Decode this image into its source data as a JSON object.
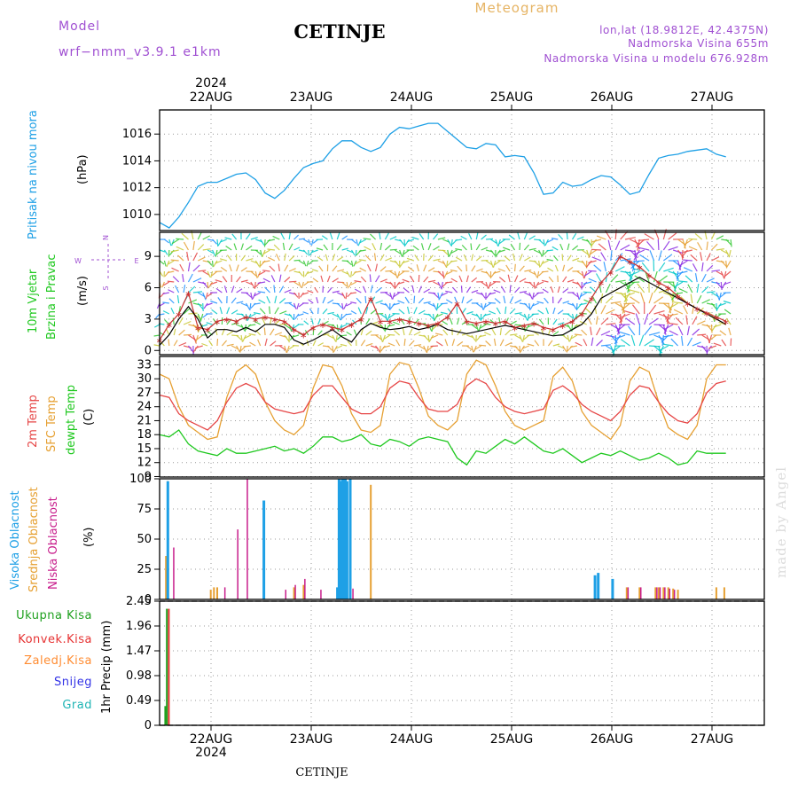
{
  "header": {
    "model_label": "Model",
    "model_name": "wrf−nmm_v3.9.1  e1km",
    "station": "CETINJE",
    "meteogram": "Meteogram",
    "lonlat": "lon,lat (18.9812E, 42.4375N)",
    "elev": "Nadmorska Visina 655m",
    "elev_model": "Nadmorska Visina u modelu 676.928m",
    "footer_station": "CETINJE",
    "watermark": "made by Angel"
  },
  "time_axis": {
    "top_year": "2024",
    "bottom_year": "2024",
    "days": [
      "22AUG",
      "23AUG",
      "24AUG",
      "25AUG",
      "26AUG",
      "27AUG"
    ]
  },
  "colors": {
    "pressure": "#1ea0e6",
    "temp2m": "#e64646",
    "sfc": "#e6a032",
    "dew": "#1ec81e",
    "wind_speed": "#000000",
    "wind_arrow": "#c83232",
    "high_cloud": "#1ea0e6",
    "mid_cloud": "#e6a032",
    "low_cloud": "#c81e8c",
    "total_precip": "#1ea01e",
    "conv_precip": "#e63232",
    "frozen": "#ff8c32",
    "snow": "#3232e6",
    "grad": "#1eb4b4"
  },
  "panels": {
    "pressure": {
      "label1": "Pritisak na nivou mora",
      "unit": "(hPa)",
      "ticks": [
        "1010",
        "1012",
        "1014",
        "1016"
      ]
    },
    "wind": {
      "label1": "10m Vjetar",
      "label2": "Brzina i Pravac",
      "unit": "(m/s)",
      "ticks": [
        "0",
        "3",
        "6",
        "9"
      ],
      "compass": {
        "n": "N",
        "s": "S",
        "e": "E",
        "w": "W"
      }
    },
    "temp": {
      "label1": "2m Temp",
      "label2": "SFC Temp",
      "label3": "dewpt Temp",
      "unit": "(C)",
      "ticks": [
        "9",
        "12",
        "15",
        "18",
        "21",
        "24",
        "27",
        "30",
        "33"
      ]
    },
    "cloud": {
      "label1": "Visoka Oblacnost",
      "label2": "Srednja Oblacnost",
      "label3": "Niska Oblacnost",
      "unit": "(%)",
      "ticks": [
        "0",
        "25",
        "50",
        "75",
        "100"
      ]
    },
    "precip": {
      "legend": [
        "Ukupna Kisa",
        "Konvek.Kisa",
        "Zaledj.Kisa",
        "Snijeg",
        "Grad"
      ],
      "unit": "1hr Precip (mm)",
      "ticks": [
        "0",
        "0.49",
        "0.98",
        "1.47",
        "1.96",
        "2.45"
      ]
    }
  },
  "chart_data": [
    {
      "type": "line",
      "title": "Pritisak na nivou mora",
      "ylabel": "(hPa)",
      "ylim": [
        1008.8,
        1017.8
      ],
      "x_hours_since_start": [
        0,
        6,
        12,
        18,
        24,
        30,
        36,
        42,
        48,
        54,
        60,
        66,
        72,
        78,
        84,
        90,
        96,
        102,
        108,
        114,
        120,
        126,
        132,
        138,
        144,
        150,
        156,
        162,
        168,
        174,
        180,
        186,
        192,
        198,
        204,
        210,
        216,
        222,
        228,
        234,
        240,
        246,
        252,
        258,
        264,
        270,
        276,
        282,
        288,
        294,
        300,
        306,
        312,
        318,
        324,
        330,
        336,
        342,
        348,
        354
      ],
      "series": [
        {
          "name": "pressure",
          "values": [
            1009.4,
            1009.0,
            1009.8,
            1010.9,
            1012.1,
            1012.4,
            1012.4,
            1012.7,
            1013.0,
            1013.1,
            1012.6,
            1011.6,
            1011.2,
            1011.8,
            1012.7,
            1013.5,
            1013.8,
            1014.0,
            1014.9,
            1015.5,
            1015.5,
            1015.0,
            1014.7,
            1015.0,
            1016.0,
            1016.5,
            1016.4,
            1016.6,
            1016.8,
            1016.8,
            1016.2,
            1015.6,
            1015.0,
            1014.9,
            1015.3,
            1015.2,
            1014.3,
            1014.4,
            1014.3,
            1013.1,
            1011.5,
            1011.6,
            1012.4,
            1012.1,
            1012.2,
            1012.6,
            1012.9,
            1012.8,
            1012.2,
            1011.5,
            1011.7,
            1013.0,
            1014.2,
            1014.4,
            1014.5,
            1014.7,
            1014.8,
            1014.9,
            1014.5,
            1014.3
          ]
        }
      ]
    },
    {
      "type": "line",
      "title": "10m Vjetar Brzina i Pravac",
      "ylabel": "(m/s)",
      "ylim": [
        -0.4,
        11.3
      ],
      "x_hours_since_start": [
        0,
        6,
        12,
        18,
        24,
        30,
        36,
        42,
        48,
        54,
        60,
        66,
        72,
        78,
        84,
        90,
        96,
        102,
        108,
        114,
        120,
        126,
        132,
        138,
        144,
        150,
        156,
        162,
        168,
        174,
        180,
        186,
        192,
        198,
        204,
        210,
        216,
        222,
        228,
        234,
        240,
        246,
        252,
        258,
        264,
        270,
        276,
        282,
        288,
        294,
        300,
        306,
        312,
        318,
        324,
        330,
        336,
        342,
        348,
        354
      ],
      "series": [
        {
          "name": "wind_speed",
          "values": [
            0.5,
            1.5,
            3.0,
            4.2,
            3.0,
            1.2,
            2.0,
            2.0,
            1.8,
            2.2,
            1.8,
            2.5,
            2.5,
            2.2,
            1.0,
            0.6,
            1.0,
            1.5,
            2.0,
            1.3,
            0.8,
            2.0,
            2.6,
            2.2,
            2.0,
            2.1,
            2.3,
            2.0,
            2.2,
            2.5,
            2.0,
            1.8,
            1.6,
            1.8,
            2.0,
            2.2,
            2.4,
            2.2,
            2.0,
            1.8,
            1.6,
            1.4,
            1.5,
            2.0,
            2.5,
            3.5,
            5.0,
            5.5,
            6.0,
            6.5,
            7.0,
            6.5,
            6.0,
            5.5,
            5.0,
            4.5,
            4.0,
            3.5,
            3.0,
            2.5
          ]
        },
        {
          "name": "wind_gust_markers",
          "values": [
            1.0,
            2.5,
            3.5,
            5.5,
            2.2,
            2.0,
            2.8,
            3.0,
            2.8,
            3.2,
            3.0,
            3.2,
            3.0,
            2.8,
            2.0,
            1.5,
            2.2,
            2.5,
            2.2,
            2.0,
            2.5,
            3.0,
            5.0,
            2.8,
            2.8,
            3.0,
            2.8,
            2.6,
            2.4,
            2.6,
            3.2,
            4.5,
            2.8,
            2.6,
            2.8,
            2.6,
            2.8,
            2.2,
            2.4,
            2.6,
            2.2,
            2.0,
            2.4,
            2.8,
            3.5,
            5.0,
            6.5,
            7.5,
            9.0,
            8.5,
            8.0,
            7.2,
            6.5,
            6.0,
            5.2,
            4.5,
            4.0,
            3.6,
            3.2,
            2.8
          ]
        }
      ]
    },
    {
      "type": "line",
      "title": "2m Temp / SFC Temp / dewpt Temp",
      "ylabel": "(C)",
      "ylim": [
        8.9,
        34.8
      ],
      "x_hours_since_start": [
        0,
        6,
        12,
        18,
        24,
        30,
        36,
        42,
        48,
        54,
        60,
        66,
        72,
        78,
        84,
        90,
        96,
        102,
        108,
        114,
        120,
        126,
        132,
        138,
        144,
        150,
        156,
        162,
        168,
        174,
        180,
        186,
        192,
        198,
        204,
        210,
        216,
        222,
        228,
        234,
        240,
        246,
        252,
        258,
        264,
        270,
        276,
        282,
        288,
        294,
        300,
        306,
        312,
        318,
        324,
        330,
        336,
        342,
        348,
        354
      ],
      "series": [
        {
          "name": "2m Temp",
          "values": [
            26.5,
            26.0,
            22.5,
            21.0,
            20.0,
            19.0,
            21.0,
            25.0,
            28.0,
            29.0,
            28.0,
            25.0,
            23.5,
            23.0,
            22.5,
            23.0,
            26.5,
            28.5,
            28.5,
            26.0,
            23.5,
            22.5,
            22.5,
            24.0,
            28.0,
            29.5,
            29.0,
            26.0,
            23.5,
            23.0,
            23.0,
            24.5,
            28.5,
            30.0,
            29.0,
            26.0,
            24.0,
            23.0,
            22.5,
            23.0,
            23.5,
            27.5,
            28.5,
            27.0,
            24.5,
            23.0,
            22.0,
            21.0,
            23.0,
            26.5,
            28.5,
            28.0,
            25.0,
            22.5,
            21.0,
            20.5,
            22.5,
            27.0,
            29.0,
            29.5
          ]
        },
        {
          "name": "SFC Temp",
          "values": [
            31.0,
            30.0,
            24.0,
            20.0,
            18.5,
            17.0,
            17.5,
            26.0,
            31.5,
            33.0,
            31.0,
            25.0,
            21.0,
            19.0,
            18.0,
            20.0,
            28.0,
            33.0,
            32.5,
            28.5,
            22.5,
            19.0,
            18.5,
            20.0,
            31.0,
            33.5,
            33.0,
            28.0,
            22.0,
            20.0,
            19.0,
            21.0,
            31.0,
            34.0,
            33.0,
            28.5,
            23.0,
            20.0,
            19.0,
            20.0,
            21.0,
            30.5,
            32.5,
            29.5,
            23.0,
            20.0,
            18.5,
            17.0,
            20.0,
            29.5,
            32.5,
            31.5,
            25.0,
            19.5,
            18.0,
            17.0,
            20.0,
            30.0,
            33.0,
            33.0
          ]
        },
        {
          "name": "dewpt Temp",
          "values": [
            18.0,
            17.5,
            19.0,
            16.0,
            14.5,
            14.0,
            13.5,
            15.0,
            14.0,
            14.0,
            14.5,
            15.0,
            15.5,
            14.5,
            15.0,
            14.0,
            15.5,
            17.5,
            17.5,
            16.5,
            17.0,
            18.0,
            16.0,
            15.5,
            17.0,
            16.5,
            15.5,
            17.0,
            17.5,
            17.0,
            16.5,
            13.0,
            11.5,
            14.5,
            14.0,
            15.5,
            17.0,
            16.0,
            17.5,
            16.0,
            14.5,
            14.0,
            15.0,
            13.5,
            12.0,
            13.0,
            14.0,
            13.5,
            14.5,
            13.5,
            12.5,
            13.0,
            14.0,
            13.0,
            11.5,
            12.0,
            14.5,
            14.0,
            14.0,
            14.0
          ]
        }
      ]
    },
    {
      "type": "bar",
      "title": "Visoka / Srednja / Niska Oblacnost",
      "ylabel": "(%)",
      "ylim": [
        0,
        100
      ],
      "x_hours_since_start": [
        4,
        5,
        6,
        8,
        30,
        32,
        34,
        36,
        40,
        42,
        44,
        48,
        54,
        58,
        60,
        63,
        66,
        70,
        78,
        84,
        90,
        100,
        104,
        106,
        108,
        110,
        112,
        113,
        114,
        115,
        116,
        117,
        118,
        120,
        132,
        140,
        142,
        144,
        150,
        156,
        168,
        174,
        186,
        198,
        206,
        210,
        220,
        228,
        234,
        236,
        238,
        240,
        242,
        244,
        246,
        248,
        250,
        252,
        256,
        268,
        273,
        275,
        284,
        286,
        292,
        300,
        310,
        312,
        315,
        318,
        321,
        324,
        327,
        330,
        340,
        348,
        353
      ],
      "series": [
        {
          "name": "Visoka Oblacnost",
          "values": [
            0,
            0,
            98,
            0,
            0,
            0,
            0,
            0,
            0,
            0,
            0,
            0,
            0,
            0,
            0,
            0,
            82,
            0,
            0,
            0,
            0,
            0,
            0,
            0,
            0,
            0,
            10,
            100,
            98,
            100,
            100,
            100,
            98,
            100,
            0,
            0,
            0,
            0,
            0,
            0,
            0,
            0,
            0,
            0,
            0,
            0,
            0,
            0,
            0,
            0,
            0,
            0,
            0,
            0,
            0,
            0,
            0,
            0,
            0,
            0,
            20,
            22,
            17,
            0,
            0,
            0,
            0,
            0,
            0,
            0,
            0,
            0,
            0,
            0,
            0,
            0,
            0
          ]
        },
        {
          "name": "Srednja Oblacnost",
          "values": [
            36,
            98,
            0,
            0,
            0,
            8,
            10,
            10,
            0,
            0,
            0,
            0,
            0,
            0,
            0,
            0,
            0,
            0,
            0,
            10,
            12,
            0,
            0,
            0,
            0,
            0,
            0,
            0,
            0,
            0,
            0,
            0,
            0,
            0,
            95,
            0,
            0,
            0,
            0,
            0,
            0,
            0,
            0,
            0,
            0,
            0,
            0,
            0,
            0,
            0,
            0,
            0,
            0,
            0,
            0,
            0,
            0,
            0,
            0,
            0,
            0,
            0,
            0,
            0,
            10,
            10,
            10,
            10,
            10,
            10,
            9,
            8,
            0,
            0,
            0,
            10,
            10
          ]
        },
        {
          "name": "Niska Oblacnost",
          "values": [
            0,
            0,
            0,
            43,
            0,
            0,
            0,
            0,
            10,
            0,
            0,
            58,
            100,
            0,
            0,
            0,
            0,
            0,
            8,
            12,
            17,
            8,
            0,
            0,
            0,
            0,
            0,
            0,
            0,
            0,
            0,
            0,
            0,
            9,
            0,
            0,
            0,
            0,
            0,
            0,
            0,
            0,
            0,
            0,
            0,
            0,
            0,
            0,
            0,
            0,
            0,
            0,
            0,
            0,
            0,
            0,
            0,
            0,
            0,
            0,
            0,
            0,
            0,
            0,
            10,
            10,
            10,
            10,
            10,
            9,
            8,
            0,
            0,
            0,
            0,
            0,
            0
          ]
        }
      ]
    },
    {
      "type": "bar",
      "title": "1hr Precip",
      "ylabel": "1hr Precip (mm)",
      "ylim": [
        0,
        2.45
      ],
      "x_hours_since_start": [
        3,
        4
      ],
      "series": [
        {
          "name": "Ukupna Kisa",
          "values": [
            0.38,
            2.3
          ]
        },
        {
          "name": "Konvek.Kisa",
          "values": [
            0.0,
            2.3
          ]
        },
        {
          "name": "Zaledj.Kisa",
          "values": [
            0.0,
            0.0
          ]
        },
        {
          "name": "Snijeg",
          "values": [
            0.0,
            0.0
          ]
        },
        {
          "name": "Grad",
          "values": [
            0.0,
            0.0
          ]
        }
      ]
    }
  ]
}
